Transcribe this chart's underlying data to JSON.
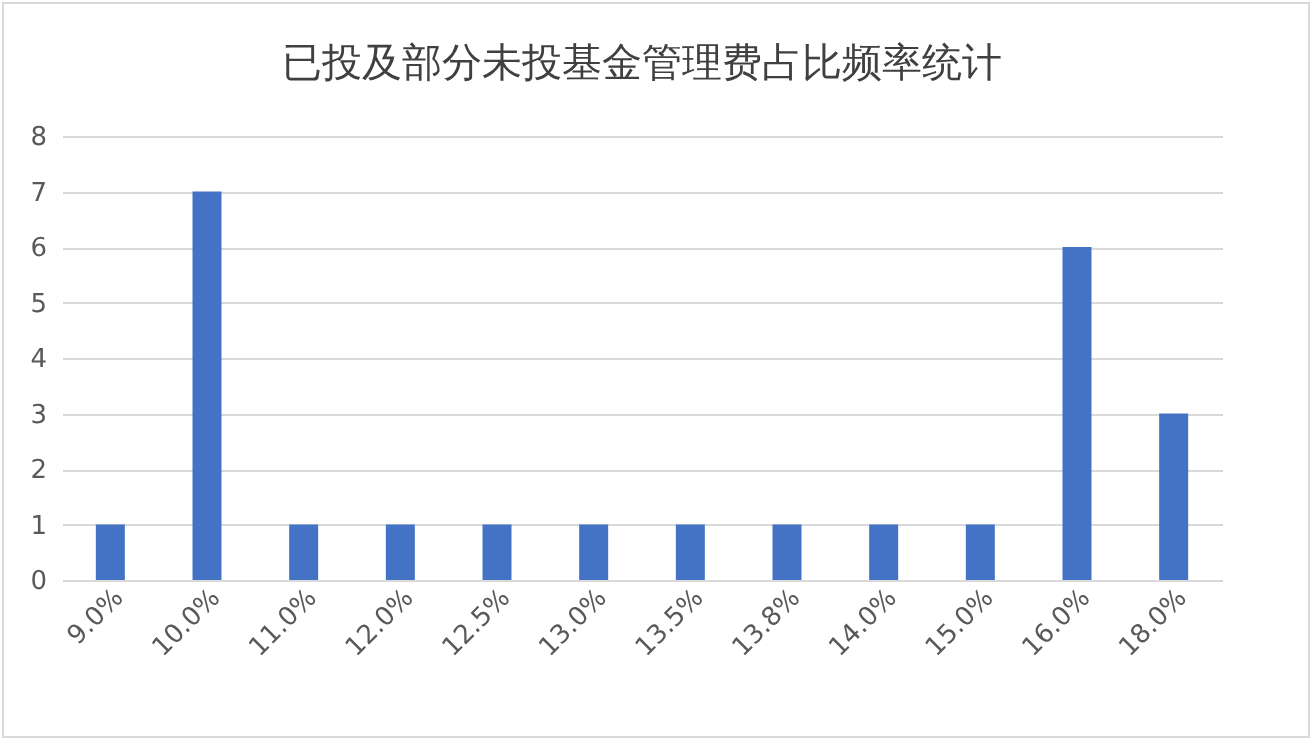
{
  "chart_data": {
    "type": "bar",
    "title": "已投及部分未投基金管理费占比频率统计",
    "categories": [
      "9.0%",
      "10.0%",
      "11.0%",
      "12.0%",
      "12.5%",
      "13.0%",
      "13.5%",
      "13.8%",
      "14.0%",
      "15.0%",
      "16.0%",
      "18.0%"
    ],
    "values": [
      1,
      7,
      1,
      1,
      1,
      1,
      1,
      1,
      1,
      1,
      6,
      3
    ],
    "color": "#4472c4",
    "ylim": [
      0,
      8
    ],
    "yticks": [
      0,
      1,
      2,
      3,
      4,
      5,
      6,
      7,
      8
    ],
    "grid": "y"
  }
}
